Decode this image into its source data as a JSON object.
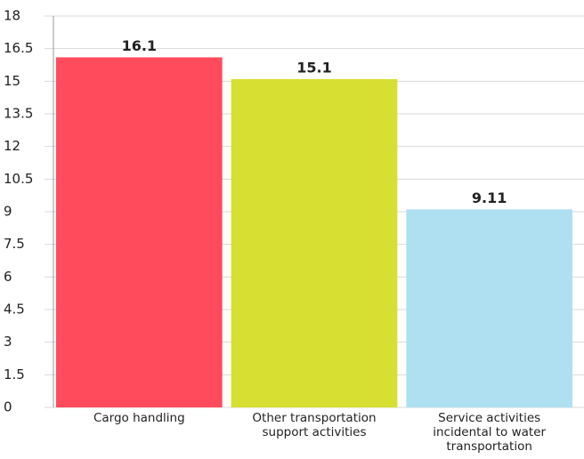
{
  "chart_data": {
    "type": "bar",
    "categories": [
      "Cargo handling",
      "Other transportation support activities",
      "Service activities incidental to water transportation"
    ],
    "values": [
      16.1,
      15.1,
      9.11
    ],
    "colors": [
      "#ff4b5c",
      "#d7df32",
      "#aee0f2"
    ],
    "ylim": [
      0,
      18
    ],
    "yticks": [
      0,
      1.5,
      3,
      4.5,
      6,
      7.5,
      9,
      10.5,
      12,
      13.5,
      15,
      16.5,
      18
    ],
    "grid": true
  }
}
